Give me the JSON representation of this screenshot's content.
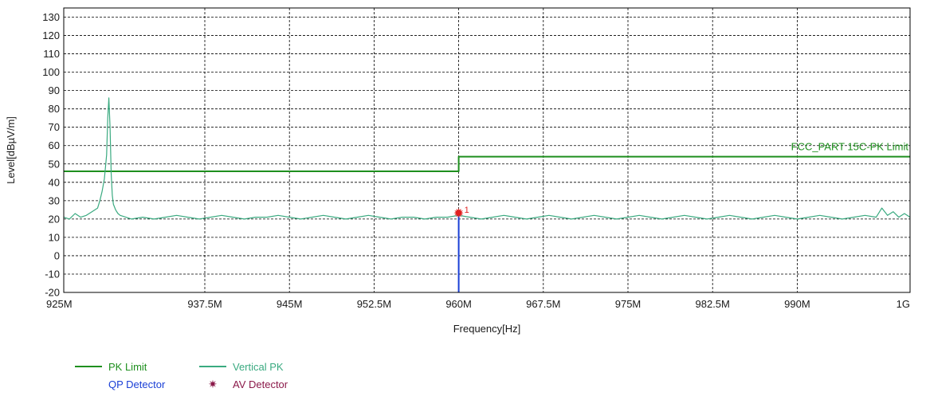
{
  "chart_data": {
    "type": "line",
    "xlabel": "Frequency[Hz]",
    "ylabel": "Level[dBµV/m]",
    "xlim": [
      925,
      1000
    ],
    "ylim": [
      -20,
      135
    ],
    "x_ticks": [
      {
        "v": 925,
        "label": "925M"
      },
      {
        "v": 937.5,
        "label": "937.5M"
      },
      {
        "v": 945,
        "label": "945M"
      },
      {
        "v": 952.5,
        "label": "952.5M"
      },
      {
        "v": 960,
        "label": "960M"
      },
      {
        "v": 967.5,
        "label": "967.5M"
      },
      {
        "v": 975,
        "label": "975M"
      },
      {
        "v": 982.5,
        "label": "982.5M"
      },
      {
        "v": 990,
        "label": "990M"
      },
      {
        "v": 1000,
        "label": "1G"
      }
    ],
    "y_ticks": [
      130,
      120,
      110,
      100,
      90,
      80,
      70,
      60,
      50,
      40,
      30,
      20,
      10,
      0,
      -10,
      -20
    ],
    "grid": true,
    "series": [
      {
        "name": "PK Limit",
        "color": "#1e8f1e",
        "x": [
          925,
          960,
          960,
          1000
        ],
        "y": [
          46,
          46,
          54,
          54
        ]
      },
      {
        "name": "Vertical PK",
        "color": "#3aaa80",
        "x": [
          925,
          925.5,
          926,
          926.5,
          927,
          927.5,
          928,
          928.2,
          928.4,
          928.6,
          928.8,
          928.9,
          929.0,
          929.1,
          929.2,
          929.3,
          929.4,
          929.6,
          929.8,
          930,
          930.5,
          931,
          932,
          933,
          934,
          935,
          936,
          937,
          938,
          939,
          940,
          941,
          942,
          943,
          944,
          945,
          946,
          947,
          948,
          949,
          950,
          951,
          952,
          953,
          954,
          955,
          956,
          957,
          958,
          959,
          960,
          961,
          962,
          963,
          964,
          965,
          966,
          967,
          968,
          969,
          970,
          971,
          972,
          973,
          974,
          975,
          976,
          977,
          978,
          979,
          980,
          981,
          982,
          983,
          984,
          985,
          986,
          987,
          988,
          989,
          990,
          991,
          992,
          993,
          994,
          995,
          996,
          997,
          997.5,
          998,
          998.5,
          999,
          999.5,
          1000
        ],
        "y": [
          21,
          20,
          23,
          21,
          22,
          24,
          26,
          30,
          35,
          42,
          55,
          75,
          86,
          70,
          45,
          33,
          28,
          25,
          23,
          22,
          21,
          20,
          21,
          20,
          21,
          22,
          21,
          20,
          21,
          22,
          21,
          20,
          21,
          21,
          22,
          21,
          20,
          21,
          22,
          21,
          20,
          21,
          22,
          21,
          20,
          21,
          21,
          20,
          21,
          21,
          22,
          21,
          20,
          21,
          22,
          21,
          20,
          21,
          22,
          21,
          20,
          21,
          22,
          21,
          20,
          21,
          22,
          21,
          20,
          21,
          22,
          21,
          20,
          21,
          22,
          21,
          20,
          21,
          22,
          21,
          20,
          21,
          22,
          21,
          20,
          21,
          22,
          21,
          26,
          22,
          24,
          21,
          23,
          21
        ]
      }
    ],
    "limit_label": {
      "text": "FCC_PART 15C-PK Limit",
      "color": "#1e8f1e"
    },
    "markers": [
      {
        "label": "1",
        "x": 960,
        "y": 23,
        "color": "#e02020",
        "drop_line_color": "#1a3fd6"
      }
    ],
    "legend": {
      "placement": "bottom-left",
      "items": [
        {
          "name": "PK Limit",
          "kind": "line",
          "color": "#1e8f1e"
        },
        {
          "name": "Vertical PK",
          "kind": "line",
          "color": "#3aaa80"
        },
        {
          "name": "QP Detector",
          "kind": "text",
          "color": "#1a3fd6"
        },
        {
          "name": "AV Detector",
          "kind": "star",
          "color": "#8b1a4a"
        }
      ]
    }
  }
}
